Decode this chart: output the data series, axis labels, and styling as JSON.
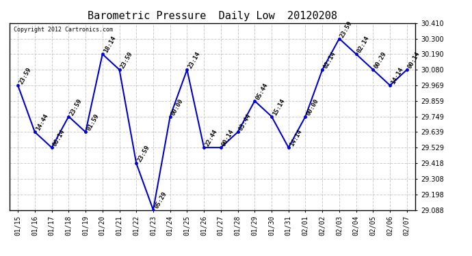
{
  "title": "Barometric Pressure  Daily Low  20120208",
  "copyright": "Copyright 2012 Cartronics.com",
  "x_labels": [
    "01/15",
    "01/16",
    "01/17",
    "01/18",
    "01/19",
    "01/20",
    "01/21",
    "01/22",
    "01/23",
    "01/24",
    "01/25",
    "01/26",
    "01/27",
    "01/28",
    "01/29",
    "01/30",
    "01/31",
    "02/01",
    "02/02",
    "02/03",
    "02/04",
    "02/05",
    "02/06",
    "02/07"
  ],
  "y_values": [
    29.969,
    29.639,
    29.529,
    29.749,
    29.639,
    30.19,
    30.08,
    29.418,
    29.088,
    29.749,
    30.08,
    29.529,
    29.529,
    29.639,
    29.859,
    29.749,
    29.529,
    29.749,
    30.08,
    30.3,
    30.19,
    30.08,
    29.969,
    30.08
  ],
  "point_labels": [
    "23:59",
    "14:44",
    "06:14",
    "23:59",
    "01:59",
    "18:14",
    "23:59",
    "23:59",
    "05:29",
    "00:00",
    "23:14",
    "22:44",
    "00:14",
    "03:44",
    "05:44",
    "15:14",
    "14:14",
    "00:00",
    "02:14",
    "23:59",
    "02:14",
    "00:29",
    "14:14",
    "00:14"
  ],
  "line_color": "#0000cc",
  "marker_color": "#0000cc",
  "bg_color": "#ffffff",
  "grid_color": "#cccccc",
  "ylim_min": 29.088,
  "ylim_max": 30.41,
  "yticks": [
    29.088,
    29.198,
    29.308,
    29.418,
    29.529,
    29.639,
    29.749,
    29.859,
    29.969,
    30.08,
    30.19,
    30.3,
    30.41
  ],
  "title_fontsize": 11,
  "tick_fontsize": 7,
  "point_label_fontsize": 6.5
}
